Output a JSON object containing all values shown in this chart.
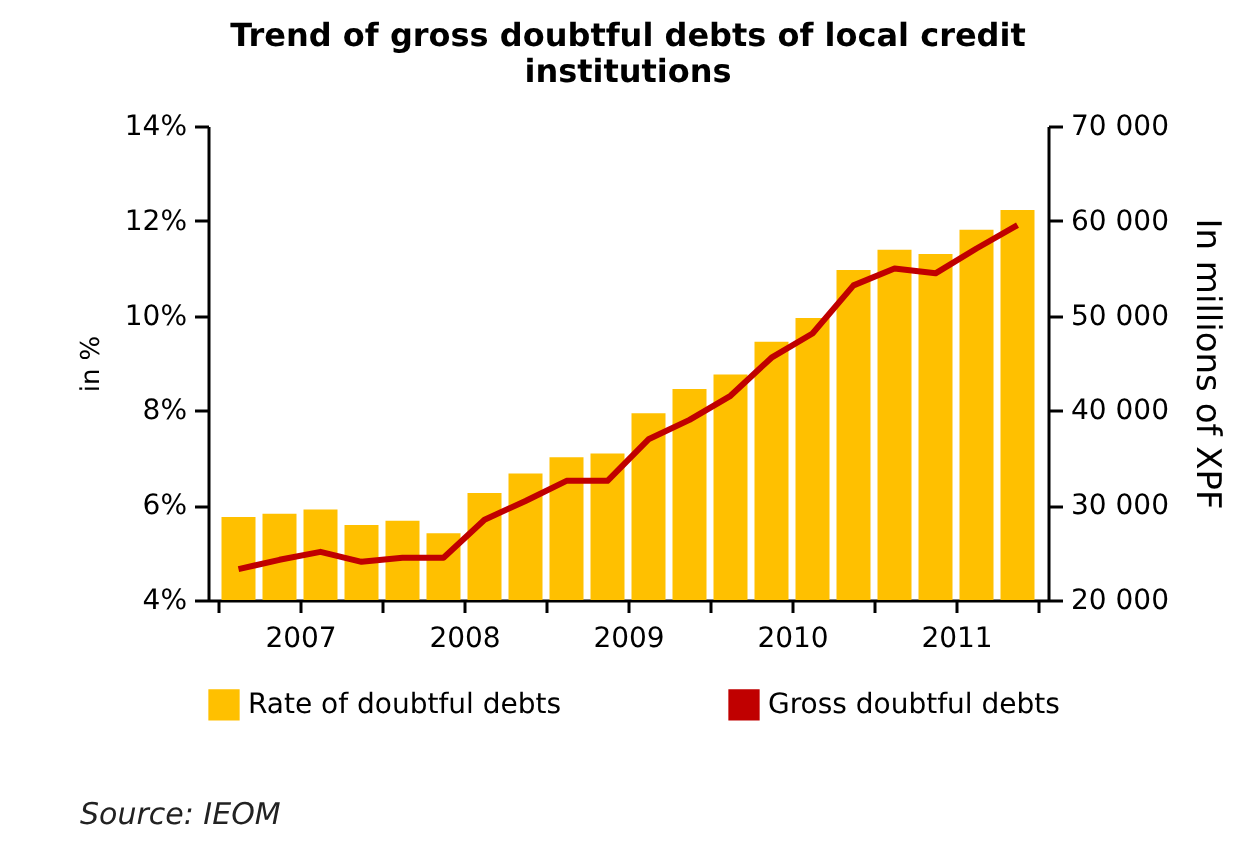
{
  "chart_data": {
    "type": "bar",
    "title": "Trend of gross doubtful debts of local credit institutions",
    "ylabel": "in %",
    "y2label": "In millions of XPF",
    "x": [
      2007.125,
      2007.375,
      2007.625,
      2007.875,
      2008.125,
      2008.375,
      2008.625,
      2008.875,
      2009.125,
      2009.375,
      2009.625,
      2009.875,
      2010.125,
      2010.375,
      2010.625,
      2010.875,
      2011.125,
      2011.375,
      2011.625,
      2011.875
    ],
    "xlim": [
      2007,
      2012
    ],
    "xticks": [
      {
        "value": 2007,
        "label": null
      },
      {
        "value": 2007.5,
        "label": "2007"
      },
      {
        "value": 2008,
        "label": null
      },
      {
        "value": 2008.5,
        "label": "2008"
      },
      {
        "value": 2009,
        "label": null
      },
      {
        "value": 2009.5,
        "label": "2009"
      },
      {
        "value": 2010,
        "label": null
      },
      {
        "value": 2010.5,
        "label": "2010"
      },
      {
        "value": 2011,
        "label": null
      },
      {
        "value": 2011.5,
        "label": "2011"
      },
      {
        "value": 2012,
        "label": null
      }
    ],
    "ylim": [
      4,
      14
    ],
    "yticks": [
      {
        "value": 4,
        "label": "4%"
      },
      {
        "value": 6,
        "label": "6%"
      },
      {
        "value": 8,
        "label": "8%"
      },
      {
        "value": 10,
        "label": "10%"
      },
      {
        "value": 12,
        "label": "12%"
      },
      {
        "value": 14,
        "label": "14%"
      }
    ],
    "y2lim": [
      20000,
      70000
    ],
    "y2ticks": [
      {
        "value": 20000,
        "label": "20 000"
      },
      {
        "value": 30000,
        "label": "30 000"
      },
      {
        "value": 40000,
        "label": "40 000"
      },
      {
        "value": 50000,
        "label": "50 000"
      },
      {
        "value": 60000,
        "label": "60 000"
      },
      {
        "value": 70000,
        "label": "70 000"
      }
    ],
    "series": [
      {
        "name": "Rate of doubtful debts",
        "color": "#ffc000",
        "values": [
          5.75,
          5.82,
          5.91,
          5.58,
          5.67,
          5.41,
          6.26,
          6.67,
          7.01,
          7.09,
          7.94,
          8.45,
          8.76,
          9.45,
          9.95,
          10.96,
          11.39,
          11.3,
          11.81,
          12.23
        ]
      },
      {
        "name": "Gross doubtful debts",
        "type": "line",
        "axis": "y2",
        "color": "#c00000",
        "values": [
          23250,
          24240,
          25080,
          24030,
          24450,
          24450,
          28470,
          30450,
          32570,
          32570,
          36950,
          39000,
          41540,
          45560,
          48110,
          53190,
          54960,
          54460,
          57080,
          59550
        ]
      }
    ],
    "legend": "bottom",
    "grid": false,
    "annotations": [
      "Source: IEOM"
    ]
  }
}
